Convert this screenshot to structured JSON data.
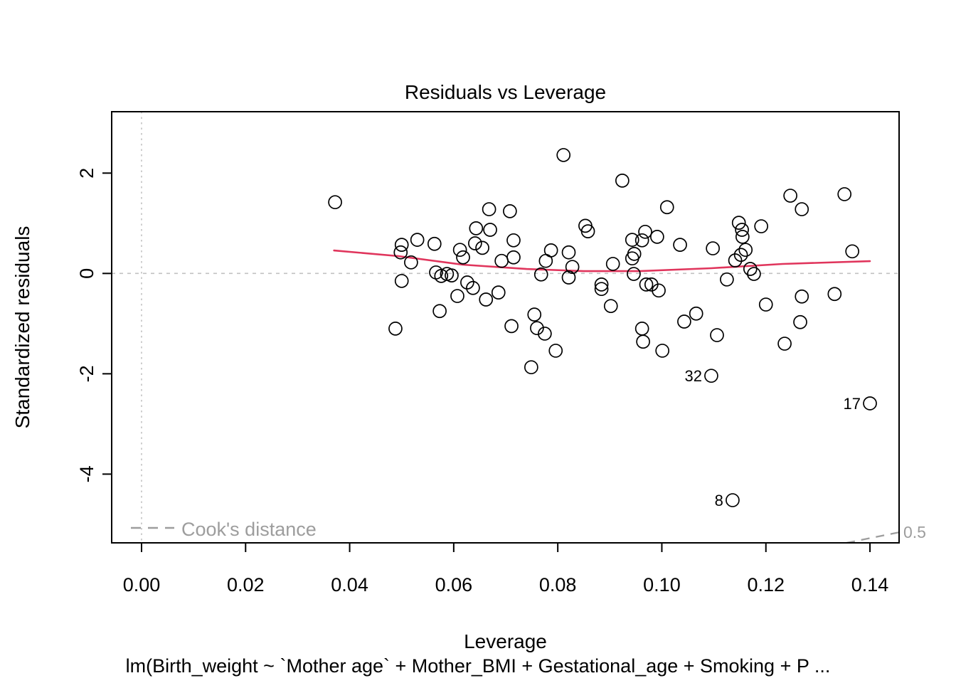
{
  "title": "Residuals vs Leverage",
  "subtitle": "lm(Birth_weight ~ `Mother age` + Mother_BMI + Gestational_age + Smoking + P ...",
  "colors": {
    "points": "#000000",
    "smooth_line": "#e0355c",
    "cooks_gray": "#9d9d9d",
    "ref_line_gray": "#c2c2c2",
    "axis_black": "#000000"
  },
  "legend": {
    "cooks_label": "Cook's distance",
    "position": "bottom-left-inside"
  },
  "chart_data": {
    "type": "scatter",
    "title": "Residuals vs Leverage",
    "xlabel": "Leverage",
    "ylabel": "Standardized residuals",
    "xlim": [
      -0.00574,
      0.1456
    ],
    "ylim": [
      -5.37,
      3.224
    ],
    "grid": false,
    "x_ticks": [
      0.0,
      0.02,
      0.04,
      0.06,
      0.08,
      0.1,
      0.12,
      0.14
    ],
    "x_tick_labels": [
      "0.00",
      "0.02",
      "0.04",
      "0.06",
      "0.08",
      "0.10",
      "0.12",
      "0.14"
    ],
    "y_ticks": [
      2,
      0,
      -2,
      -4
    ],
    "y_tick_labels": [
      "2",
      "0",
      "-2",
      "-4"
    ],
    "ref_line_h_y": 0,
    "ref_line_v_x": 0,
    "points": [
      [
        0.0372,
        1.42
      ],
      [
        0.0668,
        1.28
      ],
      [
        0.0708,
        1.24
      ],
      [
        0.0643,
        0.9
      ],
      [
        0.067,
        0.87
      ],
      [
        0.05,
        0.57
      ],
      [
        0.053,
        0.67
      ],
      [
        0.0563,
        0.59
      ],
      [
        0.0498,
        0.42
      ],
      [
        0.0518,
        0.22
      ],
      [
        0.0612,
        0.47
      ],
      [
        0.0618,
        0.32
      ],
      [
        0.0641,
        0.6
      ],
      [
        0.0655,
        0.51
      ],
      [
        0.0692,
        0.25
      ],
      [
        0.0715,
        0.66
      ],
      [
        0.0715,
        0.32
      ],
      [
        0.0566,
        0.02
      ],
      [
        0.0576,
        -0.05
      ],
      [
        0.0587,
        -0.01
      ],
      [
        0.0596,
        -0.04
      ],
      [
        0.05,
        -0.15
      ],
      [
        0.0626,
        -0.18
      ],
      [
        0.0637,
        -0.29
      ],
      [
        0.0607,
        -0.45
      ],
      [
        0.0662,
        -0.52
      ],
      [
        0.0686,
        -0.38
      ],
      [
        0.0573,
        -0.75
      ],
      [
        0.0488,
        -1.1
      ],
      [
        0.0711,
        -1.05
      ],
      [
        0.0811,
        2.36
      ],
      [
        0.0924,
        1.85
      ],
      [
        0.101,
        1.32
      ],
      [
        0.0853,
        0.95
      ],
      [
        0.0858,
        0.84
      ],
      [
        0.0968,
        0.83
      ],
      [
        0.0943,
        0.67
      ],
      [
        0.0962,
        0.66
      ],
      [
        0.0991,
        0.73
      ],
      [
        0.1035,
        0.57
      ],
      [
        0.0947,
        0.39
      ],
      [
        0.0943,
        0.3
      ],
      [
        0.0787,
        0.46
      ],
      [
        0.0777,
        0.25
      ],
      [
        0.0768,
        -0.02
      ],
      [
        0.0821,
        0.42
      ],
      [
        0.0828,
        0.13
      ],
      [
        0.0821,
        -0.08
      ],
      [
        0.0906,
        0.19
      ],
      [
        0.0884,
        -0.22
      ],
      [
        0.0884,
        -0.31
      ],
      [
        0.0946,
        -0.01
      ],
      [
        0.097,
        -0.22
      ],
      [
        0.098,
        -0.22
      ],
      [
        0.0994,
        -0.34
      ],
      [
        0.0902,
        -0.65
      ],
      [
        0.0755,
        -0.82
      ],
      [
        0.076,
        -1.09
      ],
      [
        0.0775,
        -1.2
      ],
      [
        0.0962,
        -1.1
      ],
      [
        0.0964,
        -1.36
      ],
      [
        0.1043,
        -0.96
      ],
      [
        0.1066,
        -0.8
      ],
      [
        0.0796,
        -1.54
      ],
      [
        0.0749,
        -1.87
      ],
      [
        0.1001,
        -1.54
      ],
      [
        0.1098,
        0.5
      ],
      [
        0.1247,
        1.55
      ],
      [
        0.1269,
        1.28
      ],
      [
        0.1351,
        1.58
      ],
      [
        0.1148,
        1.01
      ],
      [
        0.1154,
        0.87
      ],
      [
        0.1155,
        0.73
      ],
      [
        0.1191,
        0.94
      ],
      [
        0.1161,
        0.47
      ],
      [
        0.1152,
        0.37
      ],
      [
        0.1141,
        0.26
      ],
      [
        0.1366,
        0.44
      ],
      [
        0.117,
        0.09
      ],
      [
        0.1177,
        -0.01
      ],
      [
        0.1125,
        -0.12
      ],
      [
        0.1269,
        -0.46
      ],
      [
        0.1332,
        -0.41
      ],
      [
        0.12,
        -0.62
      ],
      [
        0.1266,
        -0.97
      ],
      [
        0.1106,
        -1.23
      ],
      [
        0.1236,
        -1.4
      ]
    ],
    "labeled_points": [
      {
        "label": "32",
        "x": 0.1095,
        "y": -2.04,
        "label_side": "left"
      },
      {
        "label": "17",
        "x": 0.14,
        "y": -2.59,
        "label_side": "left"
      },
      {
        "label": "8",
        "x": 0.1136,
        "y": -4.52,
        "label_side": "left"
      }
    ],
    "smooth_line": [
      [
        0.037,
        0.458
      ],
      [
        0.0494,
        0.345
      ],
      [
        0.0617,
        0.175
      ],
      [
        0.074,
        0.089
      ],
      [
        0.0849,
        0.047
      ],
      [
        0.0958,
        0.047
      ],
      [
        0.1095,
        0.104
      ],
      [
        0.1232,
        0.189
      ],
      [
        0.14,
        0.245
      ]
    ],
    "cooks_contour": {
      "label": "0.5",
      "segment": [
        [
          0.1355,
          -5.37
        ],
        [
          0.1456,
          -5.16
        ]
      ]
    },
    "legend_position": "bottom-left-inside"
  }
}
